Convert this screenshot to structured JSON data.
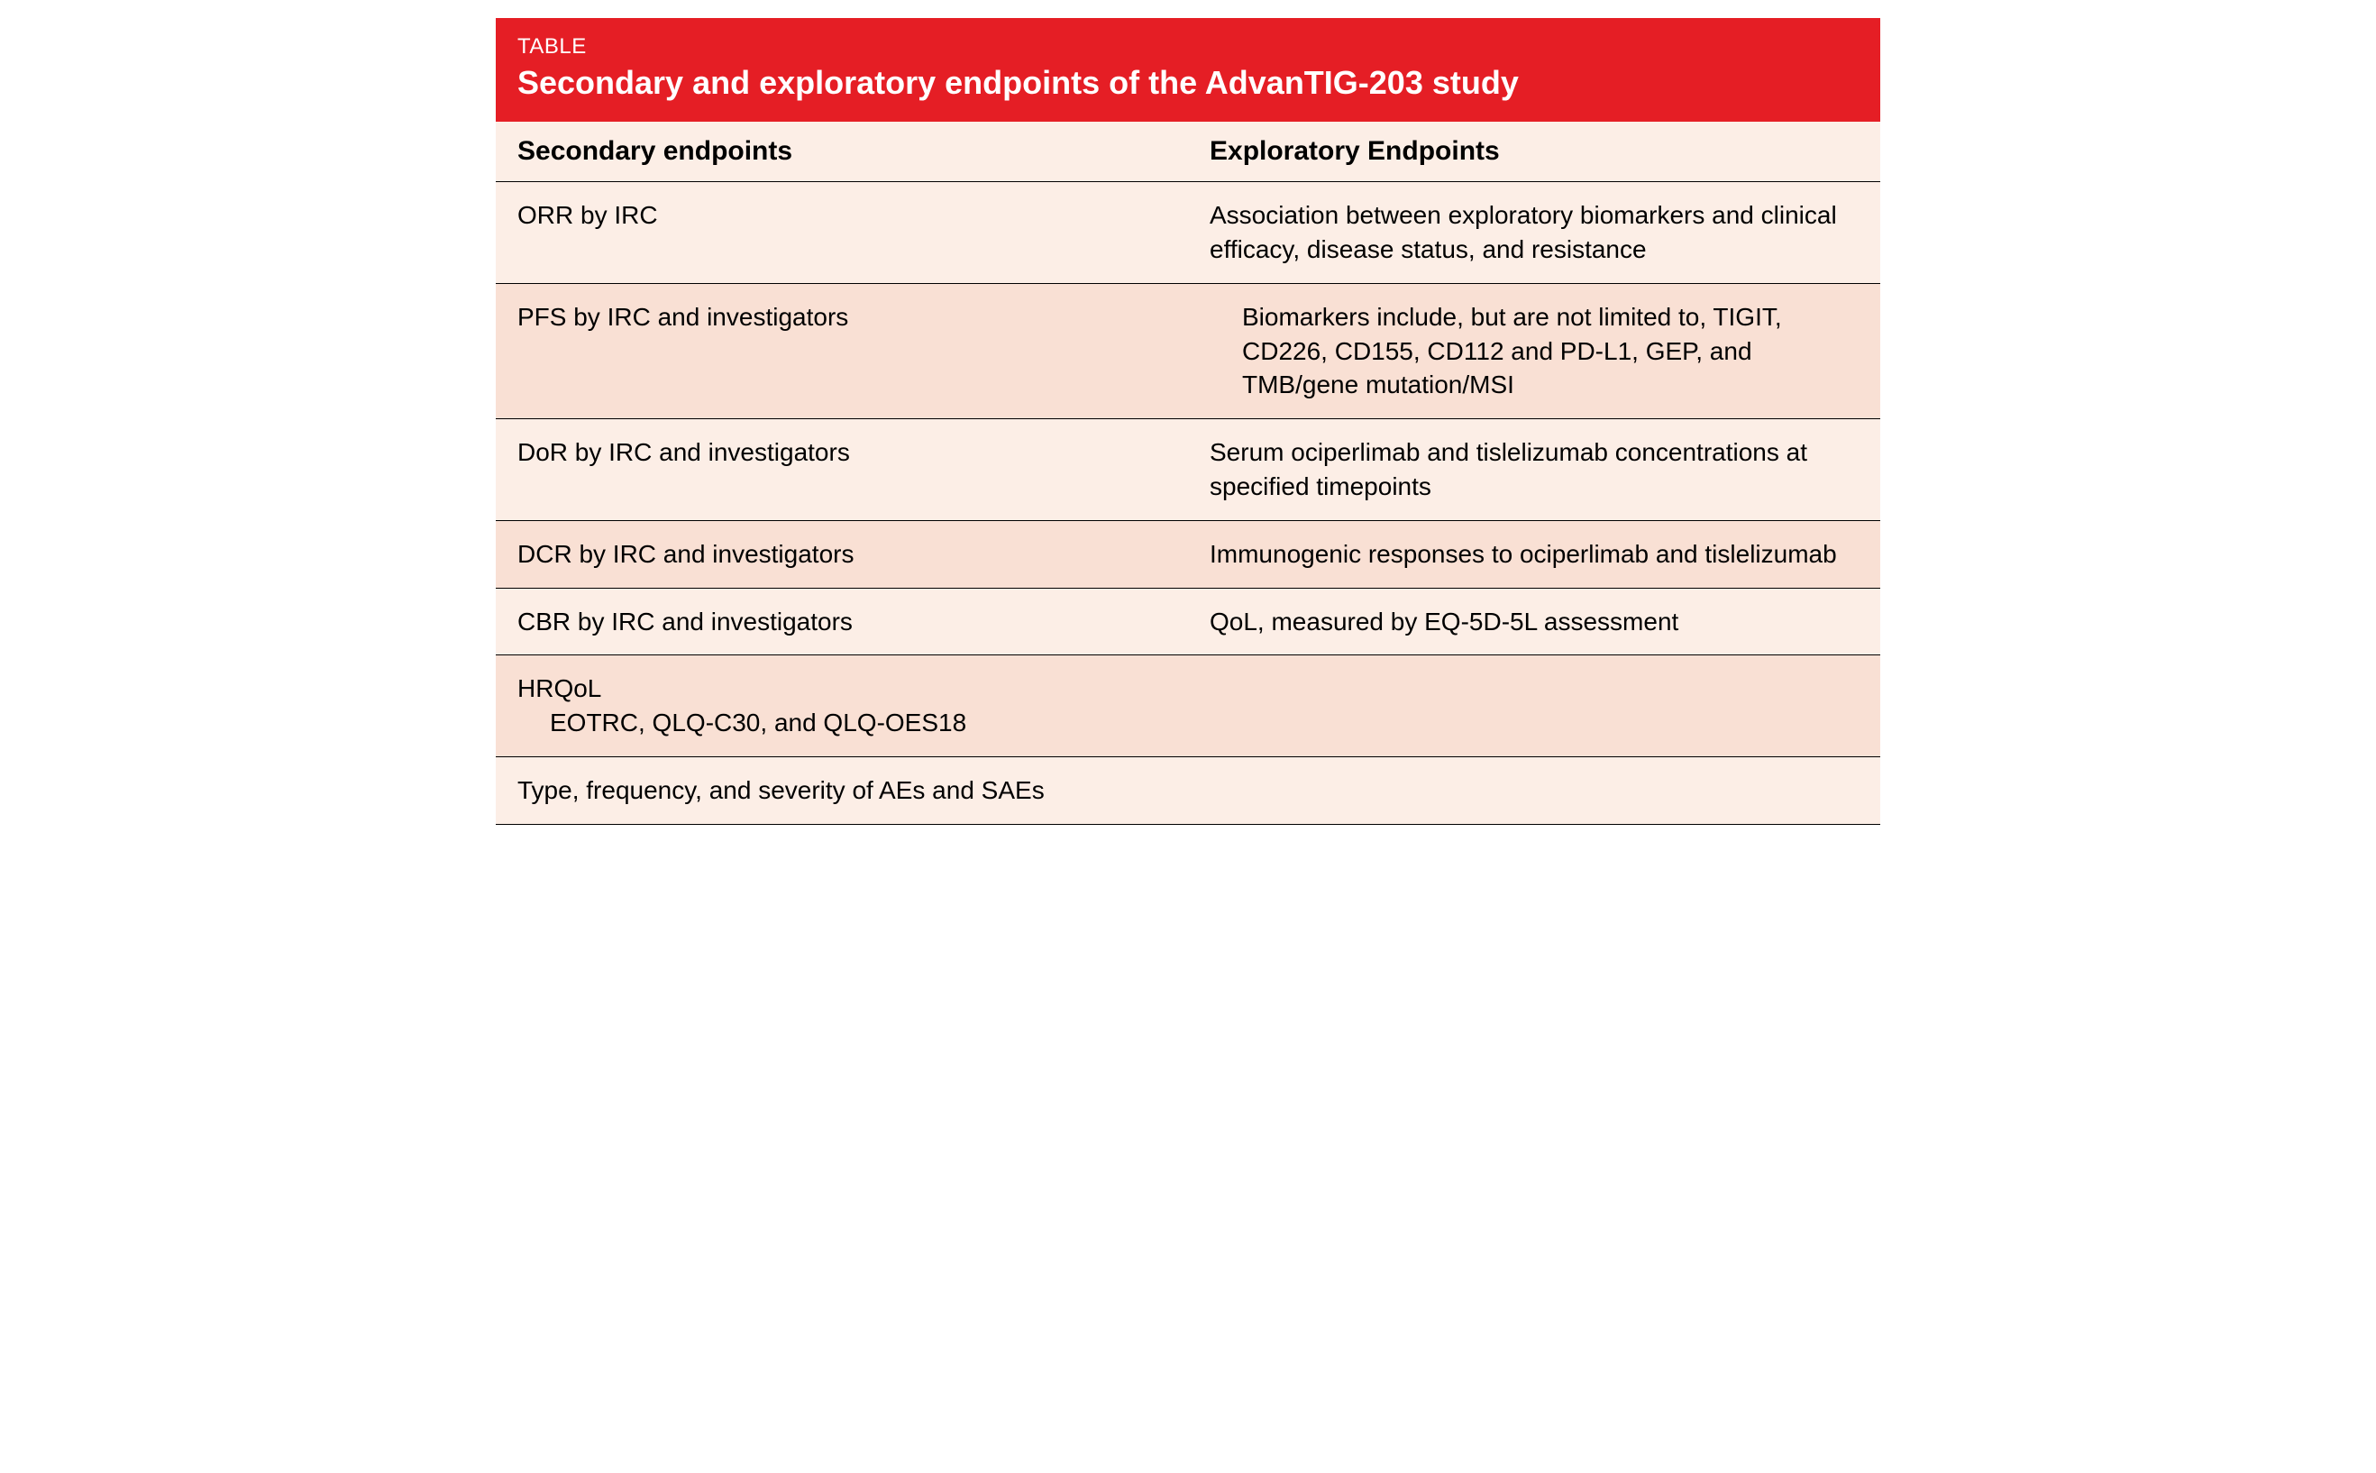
{
  "table": {
    "label": "TABLE",
    "title": "Secondary and exploratory endpoints of the AdvanTIG-203 study",
    "header_bg_color": "#e51e25",
    "header_text_color": "#ffffff",
    "row_bg_odd": "#fceee6",
    "row_bg_even": "#f9e0d4",
    "border_color": "#000000",
    "text_color": "#000000",
    "title_fontsize": 36,
    "label_fontsize": 24,
    "header_fontsize": 30,
    "cell_fontsize": 28,
    "columns": [
      {
        "id": "secondary",
        "label": "Secondary endpoints"
      },
      {
        "id": "exploratory",
        "label": "Exploratory Endpoints"
      }
    ],
    "rows": [
      {
        "secondary": {
          "main": "ORR by IRC",
          "indent": ""
        },
        "exploratory": {
          "main": "Association between exploratory biomarkers and clinical efficacy, disease status, and resistance",
          "indent": ""
        }
      },
      {
        "secondary": {
          "main": "PFS by IRC and investigators",
          "indent": ""
        },
        "exploratory": {
          "main": "",
          "indent": "Biomarkers include, but are not limited to, TIGIT, CD226, CD155, CD112 and PD-L1, GEP, and TMB/gene mutation/MSI"
        }
      },
      {
        "secondary": {
          "main": "DoR by IRC and investigators",
          "indent": ""
        },
        "exploratory": {
          "main": "Serum ociperlimab and tislelizumab concentrations at specified timepoints",
          "indent": ""
        }
      },
      {
        "secondary": {
          "main": "DCR by IRC and investigators",
          "indent": ""
        },
        "exploratory": {
          "main": "Immunogenic responses to ociperlimab and tislelizumab",
          "indent": ""
        }
      },
      {
        "secondary": {
          "main": "CBR by IRC and investigators",
          "indent": ""
        },
        "exploratory": {
          "main": "QoL, measured by EQ-5D-5L assessment",
          "indent": ""
        }
      },
      {
        "secondary": {
          "main": "HRQoL",
          "indent": "EOTRC, QLQ-C30, and QLQ-OES18"
        },
        "exploratory": {
          "main": "",
          "indent": ""
        }
      },
      {
        "secondary": {
          "main": "Type, frequency, and severity of AEs and SAEs",
          "indent": ""
        },
        "exploratory": {
          "main": "",
          "indent": ""
        }
      }
    ]
  }
}
